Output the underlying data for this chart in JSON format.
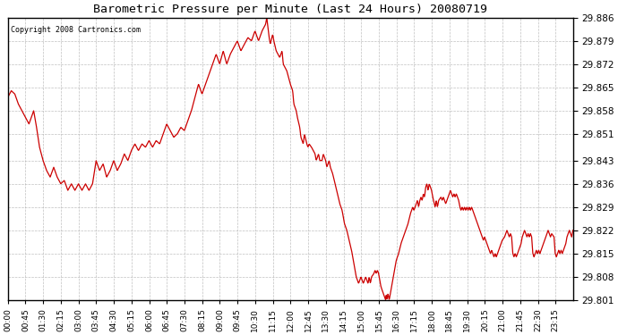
{
  "title": "Barometric Pressure per Minute (Last 24 Hours) 20080719",
  "copyright": "Copyright 2008 Cartronics.com",
  "line_color": "#cc0000",
  "bg_color": "#ffffff",
  "plot_bg_color": "#ffffff",
  "grid_color": "#b0b0b0",
  "ylim": [
    29.801,
    29.886
  ],
  "yticks": [
    29.801,
    29.808,
    29.815,
    29.822,
    29.829,
    29.836,
    29.843,
    29.851,
    29.858,
    29.865,
    29.872,
    29.879,
    29.886
  ],
  "xtick_labels": [
    "00:00",
    "00:45",
    "01:30",
    "02:15",
    "03:00",
    "03:45",
    "04:30",
    "05:15",
    "06:00",
    "06:45",
    "07:30",
    "08:15",
    "09:00",
    "09:45",
    "10:30",
    "11:15",
    "12:00",
    "12:45",
    "13:30",
    "14:15",
    "15:00",
    "15:45",
    "16:30",
    "17:15",
    "18:00",
    "18:45",
    "19:30",
    "20:15",
    "21:00",
    "21:45",
    "22:30",
    "23:15"
  ],
  "key_points": [
    [
      0,
      29.862
    ],
    [
      15,
      29.864
    ],
    [
      30,
      29.863
    ],
    [
      45,
      29.86
    ],
    [
      60,
      29.858
    ],
    [
      75,
      29.856
    ],
    [
      90,
      29.854
    ],
    [
      100,
      29.856
    ],
    [
      110,
      29.858
    ],
    [
      120,
      29.854
    ],
    [
      135,
      29.847
    ],
    [
      150,
      29.843
    ],
    [
      165,
      29.84
    ],
    [
      180,
      29.838
    ],
    [
      195,
      29.841
    ],
    [
      210,
      29.838
    ],
    [
      225,
      29.836
    ],
    [
      240,
      29.837
    ],
    [
      255,
      29.834
    ],
    [
      270,
      29.836
    ],
    [
      285,
      29.834
    ],
    [
      300,
      29.836
    ],
    [
      315,
      29.834
    ],
    [
      330,
      29.836
    ],
    [
      345,
      29.834
    ],
    [
      360,
      29.836
    ],
    [
      375,
      29.843
    ],
    [
      390,
      29.84
    ],
    [
      405,
      29.842
    ],
    [
      420,
      29.838
    ],
    [
      435,
      29.84
    ],
    [
      450,
      29.843
    ],
    [
      465,
      29.84
    ],
    [
      480,
      29.842
    ],
    [
      495,
      29.845
    ],
    [
      510,
      29.843
    ],
    [
      525,
      29.846
    ],
    [
      540,
      29.848
    ],
    [
      555,
      29.846
    ],
    [
      570,
      29.848
    ],
    [
      585,
      29.847
    ],
    [
      600,
      29.849
    ],
    [
      615,
      29.847
    ],
    [
      630,
      29.849
    ],
    [
      645,
      29.848
    ],
    [
      660,
      29.851
    ],
    [
      675,
      29.854
    ],
    [
      690,
      29.852
    ],
    [
      705,
      29.85
    ],
    [
      720,
      29.851
    ],
    [
      735,
      29.853
    ],
    [
      750,
      29.852
    ],
    [
      765,
      29.855
    ],
    [
      780,
      29.858
    ],
    [
      795,
      29.862
    ],
    [
      810,
      29.866
    ],
    [
      825,
      29.863
    ],
    [
      840,
      29.866
    ],
    [
      855,
      29.869
    ],
    [
      870,
      29.872
    ],
    [
      885,
      29.875
    ],
    [
      900,
      29.872
    ],
    [
      915,
      29.876
    ],
    [
      930,
      29.872
    ],
    [
      945,
      29.875
    ],
    [
      960,
      29.877
    ],
    [
      975,
      29.879
    ],
    [
      990,
      29.876
    ],
    [
      1005,
      29.878
    ],
    [
      1020,
      29.88
    ],
    [
      1035,
      29.879
    ],
    [
      1050,
      29.882
    ],
    [
      1065,
      29.879
    ],
    [
      1080,
      29.882
    ],
    [
      1095,
      29.884
    ],
    [
      1100,
      29.886
    ],
    [
      1110,
      29.88
    ],
    [
      1115,
      29.878
    ],
    [
      1125,
      29.881
    ],
    [
      1130,
      29.879
    ],
    [
      1140,
      29.876
    ],
    [
      1155,
      29.874
    ],
    [
      1165,
      29.876
    ],
    [
      1170,
      29.872
    ],
    [
      1185,
      29.87
    ],
    [
      1200,
      29.866
    ],
    [
      1210,
      29.864
    ],
    [
      1215,
      29.86
    ],
    [
      1225,
      29.858
    ],
    [
      1230,
      29.856
    ],
    [
      1240,
      29.853
    ],
    [
      1245,
      29.85
    ],
    [
      1255,
      29.848
    ],
    [
      1260,
      29.851
    ],
    [
      1270,
      29.848
    ],
    [
      1275,
      29.847
    ],
    [
      1280,
      29.848
    ],
    [
      1290,
      29.847
    ],
    [
      1305,
      29.845
    ],
    [
      1310,
      29.843
    ],
    [
      1320,
      29.845
    ],
    [
      1325,
      29.843
    ],
    [
      1335,
      29.843
    ],
    [
      1340,
      29.845
    ],
    [
      1350,
      29.843
    ],
    [
      1355,
      29.841
    ],
    [
      1365,
      29.843
    ],
    [
      1370,
      29.841
    ],
    [
      1380,
      29.839
    ],
    [
      1390,
      29.836
    ],
    [
      1400,
      29.833
    ],
    [
      1410,
      29.83
    ],
    [
      1420,
      29.828
    ],
    [
      1430,
      29.824
    ],
    [
      1440,
      29.822
    ],
    [
      1450,
      29.819
    ],
    [
      1460,
      29.816
    ],
    [
      1470,
      29.812
    ],
    [
      1480,
      29.808
    ],
    [
      1490,
      29.806
    ],
    [
      1500,
      29.808
    ],
    [
      1510,
      29.806
    ],
    [
      1515,
      29.807
    ],
    [
      1520,
      29.808
    ],
    [
      1525,
      29.807
    ],
    [
      1530,
      29.806
    ],
    [
      1535,
      29.808
    ],
    [
      1540,
      29.806
    ],
    [
      1545,
      29.808
    ],
    [
      1555,
      29.809
    ],
    [
      1560,
      29.81
    ],
    [
      1565,
      29.809
    ],
    [
      1570,
      29.81
    ],
    [
      1575,
      29.809
    ],
    [
      1580,
      29.807
    ],
    [
      1585,
      29.805
    ],
    [
      1590,
      29.804
    ],
    [
      1595,
      29.803
    ],
    [
      1600,
      29.802
    ],
    [
      1605,
      29.801
    ],
    [
      1607,
      29.803
    ],
    [
      1610,
      29.801
    ],
    [
      1615,
      29.803
    ],
    [
      1620,
      29.801
    ],
    [
      1625,
      29.803
    ],
    [
      1630,
      29.805
    ],
    [
      1635,
      29.807
    ],
    [
      1640,
      29.809
    ],
    [
      1645,
      29.811
    ],
    [
      1650,
      29.813
    ],
    [
      1660,
      29.815
    ],
    [
      1670,
      29.818
    ],
    [
      1680,
      29.82
    ],
    [
      1690,
      29.822
    ],
    [
      1700,
      29.824
    ],
    [
      1710,
      29.827
    ],
    [
      1720,
      29.829
    ],
    [
      1725,
      29.828
    ],
    [
      1730,
      29.829
    ],
    [
      1740,
      29.831
    ],
    [
      1745,
      29.829
    ],
    [
      1750,
      29.831
    ],
    [
      1755,
      29.832
    ],
    [
      1760,
      29.831
    ],
    [
      1765,
      29.833
    ],
    [
      1770,
      29.832
    ],
    [
      1775,
      29.835
    ],
    [
      1780,
      29.836
    ],
    [
      1785,
      29.834
    ],
    [
      1790,
      29.836
    ],
    [
      1800,
      29.834
    ],
    [
      1805,
      29.832
    ],
    [
      1815,
      29.829
    ],
    [
      1820,
      29.831
    ],
    [
      1825,
      29.829
    ],
    [
      1830,
      29.831
    ],
    [
      1840,
      29.832
    ],
    [
      1845,
      29.831
    ],
    [
      1850,
      29.832
    ],
    [
      1855,
      29.831
    ],
    [
      1860,
      29.83
    ],
    [
      1865,
      29.831
    ],
    [
      1870,
      29.832
    ],
    [
      1875,
      29.833
    ],
    [
      1880,
      29.834
    ],
    [
      1885,
      29.833
    ],
    [
      1890,
      29.832
    ],
    [
      1895,
      29.833
    ],
    [
      1900,
      29.832
    ],
    [
      1905,
      29.833
    ],
    [
      1910,
      29.832
    ],
    [
      1915,
      29.831
    ],
    [
      1920,
      29.829
    ],
    [
      1925,
      29.828
    ],
    [
      1930,
      29.829
    ],
    [
      1935,
      29.828
    ],
    [
      1940,
      29.829
    ],
    [
      1945,
      29.828
    ],
    [
      1950,
      29.829
    ],
    [
      1955,
      29.828
    ],
    [
      1960,
      29.829
    ],
    [
      1965,
      29.828
    ],
    [
      1970,
      29.829
    ],
    [
      1975,
      29.828
    ],
    [
      1980,
      29.827
    ],
    [
      1985,
      29.826
    ],
    [
      1990,
      29.825
    ],
    [
      1995,
      29.824
    ],
    [
      2000,
      29.823
    ],
    [
      2005,
      29.822
    ],
    [
      2010,
      29.821
    ],
    [
      2015,
      29.82
    ],
    [
      2020,
      29.819
    ],
    [
      2025,
      29.82
    ],
    [
      2030,
      29.819
    ],
    [
      2035,
      29.818
    ],
    [
      2040,
      29.817
    ],
    [
      2045,
      29.816
    ],
    [
      2050,
      29.815
    ],
    [
      2055,
      29.816
    ],
    [
      2060,
      29.815
    ],
    [
      2065,
      29.814
    ],
    [
      2070,
      29.815
    ],
    [
      2075,
      29.814
    ],
    [
      2080,
      29.815
    ],
    [
      2085,
      29.816
    ],
    [
      2090,
      29.817
    ],
    [
      2095,
      29.818
    ],
    [
      2100,
      29.819
    ],
    [
      2110,
      29.82
    ],
    [
      2115,
      29.821
    ],
    [
      2120,
      29.822
    ],
    [
      2125,
      29.821
    ],
    [
      2130,
      29.82
    ],
    [
      2135,
      29.821
    ],
    [
      2140,
      29.82
    ],
    [
      2145,
      29.815
    ],
    [
      2150,
      29.814
    ],
    [
      2155,
      29.815
    ],
    [
      2160,
      29.814
    ],
    [
      2165,
      29.815
    ],
    [
      2170,
      29.816
    ],
    [
      2175,
      29.817
    ],
    [
      2180,
      29.818
    ],
    [
      2185,
      29.82
    ],
    [
      2190,
      29.821
    ],
    [
      2195,
      29.822
    ],
    [
      2200,
      29.821
    ],
    [
      2205,
      29.82
    ],
    [
      2210,
      29.821
    ],
    [
      2215,
      29.82
    ],
    [
      2220,
      29.821
    ],
    [
      2225,
      29.82
    ],
    [
      2230,
      29.815
    ],
    [
      2235,
      29.814
    ],
    [
      2240,
      29.815
    ],
    [
      2245,
      29.816
    ],
    [
      2250,
      29.815
    ],
    [
      2255,
      29.816
    ],
    [
      2260,
      29.815
    ],
    [
      2265,
      29.816
    ],
    [
      2270,
      29.817
    ],
    [
      2275,
      29.818
    ],
    [
      2280,
      29.819
    ],
    [
      2285,
      29.82
    ],
    [
      2290,
      29.821
    ],
    [
      2295,
      29.822
    ],
    [
      2300,
      29.821
    ],
    [
      2305,
      29.82
    ],
    [
      2310,
      29.821
    ],
    [
      2320,
      29.82
    ],
    [
      2325,
      29.815
    ],
    [
      2330,
      29.814
    ],
    [
      2335,
      29.815
    ],
    [
      2340,
      29.816
    ],
    [
      2345,
      29.815
    ],
    [
      2350,
      29.816
    ],
    [
      2355,
      29.815
    ],
    [
      2360,
      29.816
    ],
    [
      2365,
      29.817
    ],
    [
      2370,
      29.818
    ],
    [
      2375,
      29.82
    ],
    [
      2380,
      29.821
    ],
    [
      2385,
      29.822
    ],
    [
      2390,
      29.821
    ],
    [
      2395,
      29.82
    ],
    [
      2400,
      29.822
    ]
  ]
}
